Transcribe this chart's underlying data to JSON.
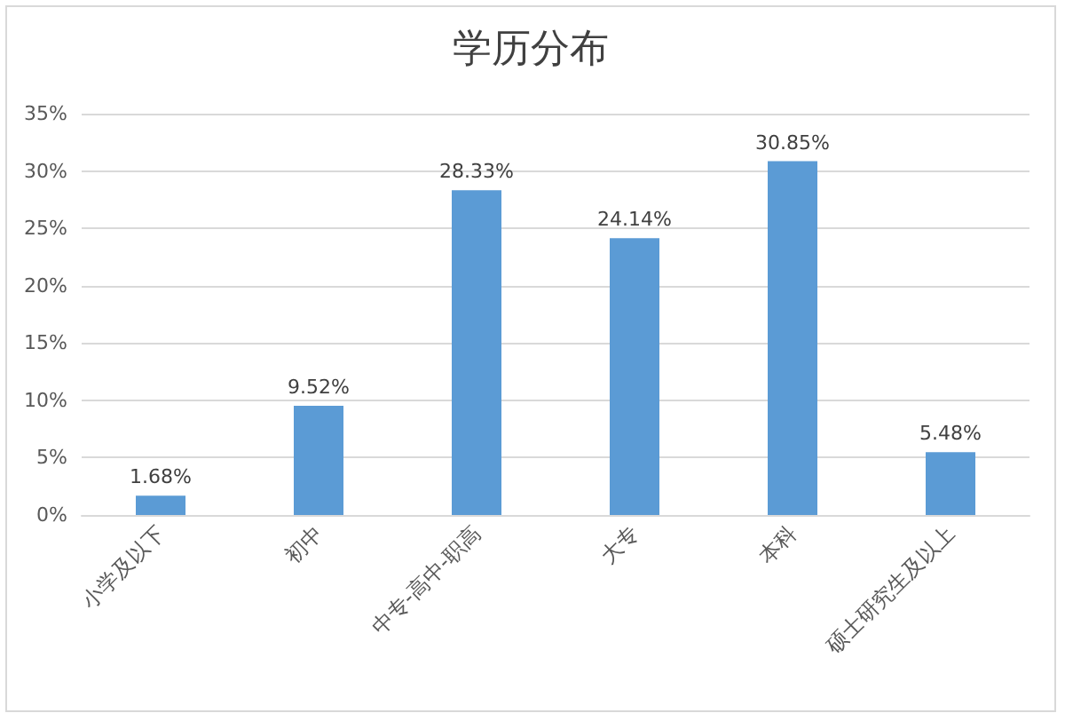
{
  "chart_data": {
    "type": "bar",
    "title": "学历分布",
    "categories": [
      "小学及以下",
      "初中",
      "中专-高中-职高",
      "大专",
      "本科",
      "硕士研究生及以上"
    ],
    "values": [
      1.68,
      9.52,
      28.33,
      24.14,
      30.85,
      5.48
    ],
    "value_labels": [
      "1.68%",
      "9.52%",
      "28.33%",
      "24.14%",
      "30.85%",
      "5.48%"
    ],
    "color": "#5b9bd5",
    "ylim": [
      0,
      35
    ],
    "yticks": [
      {
        "value": 0,
        "label": "0%"
      },
      {
        "value": 5,
        "label": "5%"
      },
      {
        "value": 10,
        "label": "10%"
      },
      {
        "value": 15,
        "label": "15%"
      },
      {
        "value": 20,
        "label": "20%"
      },
      {
        "value": 25,
        "label": "25%"
      },
      {
        "value": 30,
        "label": "30%"
      },
      {
        "value": 35,
        "label": "35%"
      }
    ],
    "grid": "y"
  }
}
